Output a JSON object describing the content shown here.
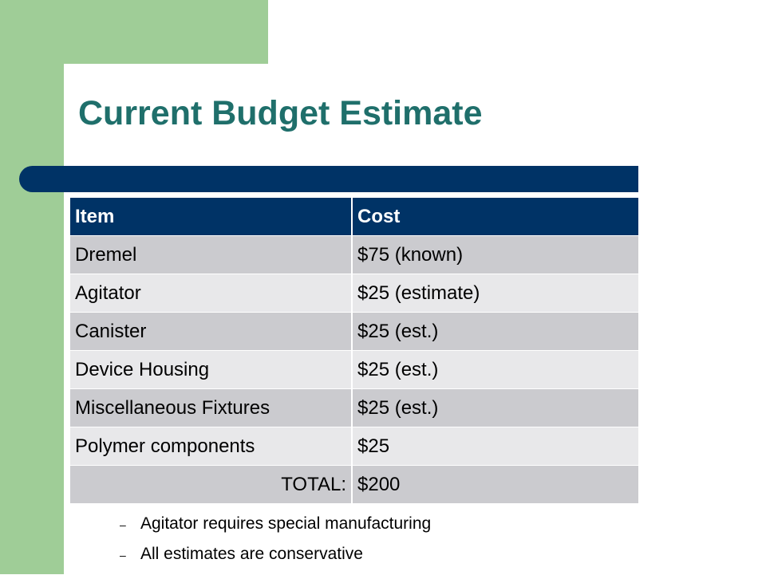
{
  "slide": {
    "title": "Current Budget Estimate"
  },
  "table": {
    "headers": [
      "Item",
      "Cost"
    ],
    "rows": [
      [
        "Dremel",
        "$75 (known)"
      ],
      [
        "Agitator",
        "$25 (estimate)"
      ],
      [
        "Canister",
        "$25 (est.)"
      ],
      [
        "Device Housing",
        "$25 (est.)"
      ],
      [
        "Miscellaneous Fixtures",
        "$25 (est.)"
      ],
      [
        "Polymer components",
        "$25"
      ]
    ],
    "total_label": "TOTAL:",
    "total_value": "$200"
  },
  "notes": {
    "dash": "–",
    "items": [
      "Agitator requires special manufacturing",
      "All estimates are conservative"
    ]
  },
  "colors": {
    "accent_green": "#9fcd97",
    "title_teal": "#1f6f6b",
    "header_navy": "#003366",
    "row_dark": "#cbcbcf",
    "row_light": "#e8e8ea"
  }
}
